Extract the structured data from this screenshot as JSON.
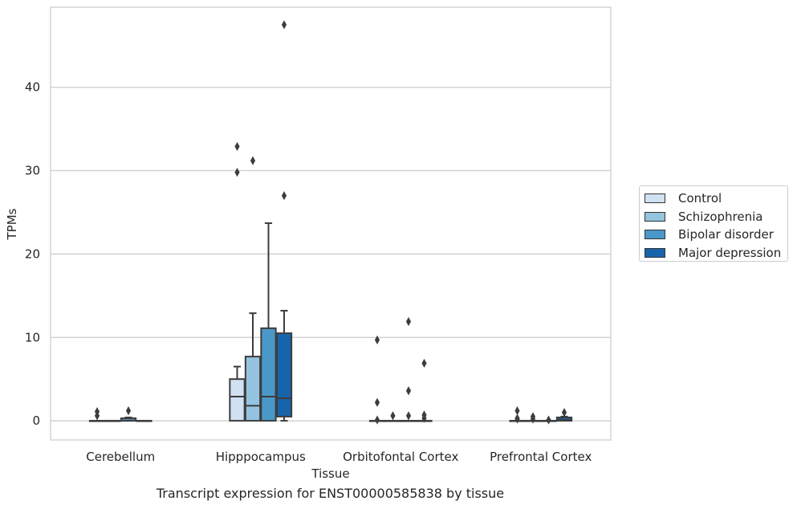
{
  "caption": "Transcript expression for ENST00000585838 by tissue",
  "chart_data": {
    "type": "box",
    "xlabel": "Tissue",
    "ylabel": "TPMs",
    "ylim": [
      -2.3,
      49.6
    ],
    "yticks": [
      0,
      10,
      20,
      30,
      40
    ],
    "grid": "horizontal",
    "legend_position": "right",
    "categories": [
      "Cerebellum",
      "Hipppocampus",
      "Orbitofontal Cortex",
      "Prefrontal Cortex"
    ],
    "series": [
      {
        "name": "Control",
        "color": "#d0e1f2",
        "boxes": [
          {
            "whislo": 0,
            "q1": 0,
            "med": 0,
            "q3": 0,
            "whishi": 0,
            "fliers": [
              0.6,
              1.1
            ]
          },
          {
            "whislo": 0,
            "q1": 0,
            "med": 2.9,
            "q3": 5.0,
            "whishi": 6.5,
            "fliers": [
              29.8,
              32.9
            ]
          },
          {
            "whislo": 0,
            "q1": 0,
            "med": 0,
            "q3": 0,
            "whishi": 0,
            "fliers": [
              0.1,
              2.2,
              9.7
            ]
          },
          {
            "whislo": 0,
            "q1": 0,
            "med": 0,
            "q3": 0,
            "whishi": 0,
            "fliers": [
              0.2,
              0.3,
              1.2
            ]
          }
        ]
      },
      {
        "name": "Schizophrenia",
        "color": "#94c4df",
        "boxes": [
          {
            "whislo": 0,
            "q1": 0,
            "med": 0,
            "q3": 0,
            "whishi": 0,
            "fliers": []
          },
          {
            "whislo": 0,
            "q1": 0,
            "med": 1.8,
            "q3": 7.7,
            "whishi": 12.9,
            "fliers": [
              31.2
            ]
          },
          {
            "whislo": 0,
            "q1": 0,
            "med": 0,
            "q3": 0,
            "whishi": 0,
            "fliers": [
              0.6
            ]
          },
          {
            "whislo": 0,
            "q1": 0,
            "med": 0,
            "q3": 0,
            "whishi": 0,
            "fliers": [
              0.2,
              0.5
            ]
          }
        ]
      },
      {
        "name": "Bipolar disorder",
        "color": "#4a98c9",
        "boxes": [
          {
            "whislo": 0,
            "q1": 0,
            "med": 0,
            "q3": 0.3,
            "whishi": 0.4,
            "fliers": [
              1.2
            ]
          },
          {
            "whislo": 0,
            "q1": 0,
            "med": 2.9,
            "q3": 11.1,
            "whishi": 23.7,
            "fliers": []
          },
          {
            "whislo": 0,
            "q1": 0,
            "med": 0,
            "q3": 0,
            "whishi": 0,
            "fliers": [
              0.6,
              3.6,
              11.9
            ]
          },
          {
            "whislo": 0,
            "q1": 0,
            "med": 0,
            "q3": 0,
            "whishi": 0,
            "fliers": [
              0.1
            ]
          }
        ]
      },
      {
        "name": "Major depression",
        "color": "#1764ab",
        "boxes": [
          {
            "whislo": 0,
            "q1": 0,
            "med": 0,
            "q3": 0,
            "whishi": 0,
            "fliers": []
          },
          {
            "whislo": 0,
            "q1": 0.5,
            "med": 2.7,
            "q3": 10.5,
            "whishi": 13.2,
            "fliers": [
              27.0,
              47.5
            ]
          },
          {
            "whislo": 0,
            "q1": 0,
            "med": 0,
            "q3": 0,
            "whishi": 0,
            "fliers": [
              0.3,
              0.7,
              6.9
            ]
          },
          {
            "whislo": 0,
            "q1": 0,
            "med": 0.1,
            "q3": 0.4,
            "whishi": 0.5,
            "fliers": [
              1.0
            ]
          }
        ]
      }
    ]
  }
}
